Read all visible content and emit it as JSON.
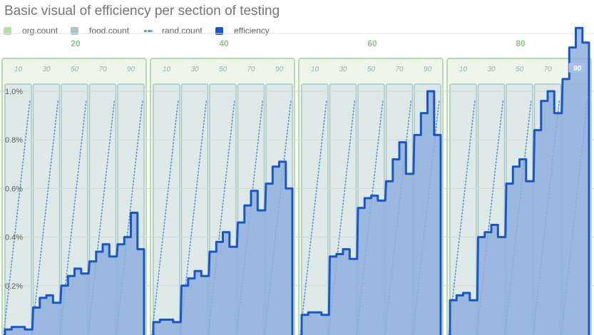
{
  "chart_data": {
    "type": "area",
    "title": "Basic visual of efficiency per section of testing",
    "legend": [
      {
        "name": "org.count",
        "color": "#b7dcae",
        "style": "square"
      },
      {
        "name": "food.count",
        "color": "#a9c6c9",
        "style": "square"
      },
      {
        "name": "rand.count",
        "color": "#5b8fd6",
        "style": "dotted"
      },
      {
        "name": "efficiency",
        "color": "#1a56c9",
        "style": "square"
      }
    ],
    "legend_position": "top-left",
    "grid": true,
    "y_axis": {
      "range": [
        0,
        1.2
      ],
      "ticks": [
        0.2,
        0.4,
        0.6,
        0.8,
        1.0
      ],
      "tick_labels": [
        "0.2%",
        "0.4%",
        "0.6%",
        "0.8%",
        "1.0%"
      ]
    },
    "org_count_axis": {
      "range": [
        0,
        100
      ],
      "ticks": [
        20,
        40,
        60,
        80
      ],
      "tick_labels": [
        "20",
        "40",
        "60",
        "80"
      ]
    },
    "food_count_ticks": [
      "10",
      "30",
      "50",
      "70",
      "90"
    ],
    "highlight_label": "90",
    "series": [
      {
        "name": "efficiency",
        "sections": [
          [
            [
              0.02,
              0.03,
              0.03,
              0.02
            ],
            [
              0.11,
              0.15,
              0.16,
              0.13
            ],
            [
              0.2,
              0.24,
              0.27,
              0.25
            ],
            [
              0.3,
              0.34,
              0.37,
              0.32
            ],
            [
              0.37,
              0.4,
              0.5,
              0.35
            ]
          ],
          [
            [
              0.05,
              0.06,
              0.06,
              0.05
            ],
            [
              0.2,
              0.23,
              0.26,
              0.24
            ],
            [
              0.34,
              0.38,
              0.42,
              0.36
            ],
            [
              0.46,
              0.53,
              0.59,
              0.51
            ],
            [
              0.62,
              0.69,
              0.71,
              0.6
            ]
          ],
          [
            [
              0.08,
              0.09,
              0.09,
              0.08
            ],
            [
              0.32,
              0.33,
              0.35,
              0.31
            ],
            [
              0.52,
              0.56,
              0.57,
              0.55
            ],
            [
              0.63,
              0.72,
              0.79,
              0.66
            ],
            [
              0.82,
              0.91,
              1.0,
              0.82
            ]
          ],
          [
            [
              0.14,
              0.16,
              0.17,
              0.14
            ],
            [
              0.4,
              0.42,
              0.45,
              0.4
            ],
            [
              0.62,
              0.69,
              0.72,
              0.63
            ],
            [
              0.84,
              0.96,
              1.0,
              0.91
            ],
            [
              1.05,
              1.18,
              1.26,
              1.2
            ]
          ]
        ]
      }
    ]
  }
}
